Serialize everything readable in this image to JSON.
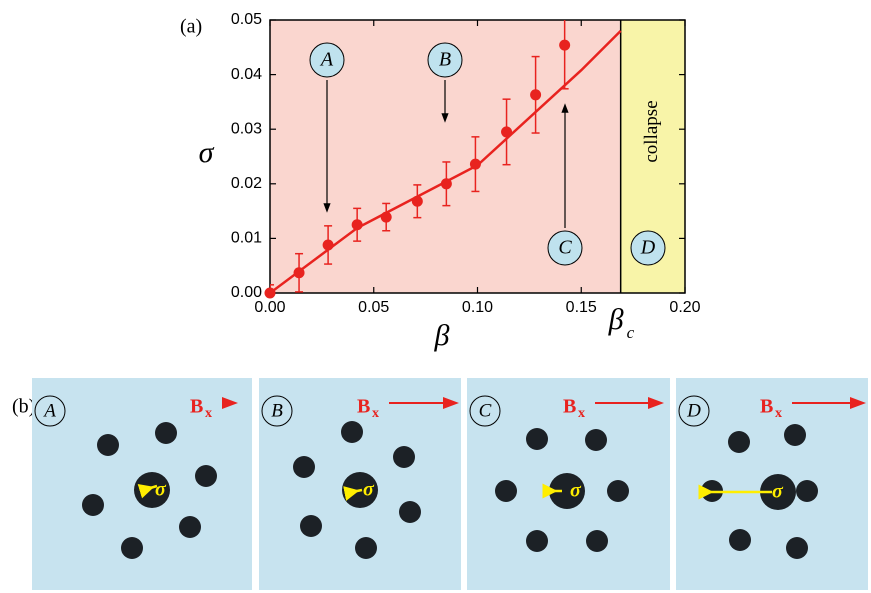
{
  "figure_label_a": "(a)",
  "figure_label_b": "(b)",
  "chart_data": {
    "type": "scatter",
    "xlabel": "β",
    "ylabel": "σ",
    "xlim": [
      0,
      0.2
    ],
    "ylim": [
      0,
      0.05
    ],
    "xticks": [
      {
        "value": 0,
        "label": "0.00"
      },
      {
        "value": 0.05,
        "label": "0.05"
      },
      {
        "value": 0.1,
        "label": "0.10"
      },
      {
        "value": 0.15,
        "label": "0.15"
      },
      {
        "value": 0.2,
        "label": "0.20"
      }
    ],
    "yticks": [
      {
        "value": 0,
        "label": "0.00"
      },
      {
        "value": 0.01,
        "label": "0.01"
      },
      {
        "value": 0.02,
        "label": "0.02"
      },
      {
        "value": 0.03,
        "label": "0.03"
      },
      {
        "value": 0.04,
        "label": "0.04"
      },
      {
        "value": 0.05,
        "label": "0.05"
      }
    ],
    "points": {
      "color": "#e8231f",
      "x": [
        0,
        0.014,
        0.028,
        0.042,
        0.056,
        0.071,
        0.085,
        0.099,
        0.114,
        0.128,
        0.142
      ],
      "values": [
        0,
        0.0037,
        0.0088,
        0.0125,
        0.0139,
        0.0168,
        0.02,
        0.0236,
        0.0295,
        0.0363,
        0.0454
      ],
      "errors": [
        0.0015,
        0.0035,
        0.0035,
        0.003,
        0.0025,
        0.003,
        0.004,
        0.005,
        0.006,
        0.007,
        0.008
      ]
    },
    "fit": {
      "color": "#e8231f",
      "x": [
        0,
        0.042,
        0.1,
        0.15,
        0.169
      ],
      "values": [
        0,
        0.0119,
        0.0234,
        0.0408,
        0.048
      ]
    },
    "critical": {
      "symbol": "β",
      "subscript": "c",
      "value": 0.169
    },
    "regions": {
      "stable_color": "#fad6cf",
      "collapse_color": "#f8f4a8",
      "collapse_label": "collapse"
    },
    "markers": [
      "A",
      "B",
      "C",
      "D"
    ]
  },
  "panels": [
    {
      "label": "A",
      "field": "B",
      "field_sub": "x",
      "torque": "σ"
    },
    {
      "label": "B",
      "field": "B",
      "field_sub": "x",
      "torque": "σ"
    },
    {
      "label": "C",
      "field": "B",
      "field_sub": "x",
      "torque": "σ"
    },
    {
      "label": "D",
      "field": "B",
      "field_sub": "x",
      "torque": "σ"
    }
  ]
}
